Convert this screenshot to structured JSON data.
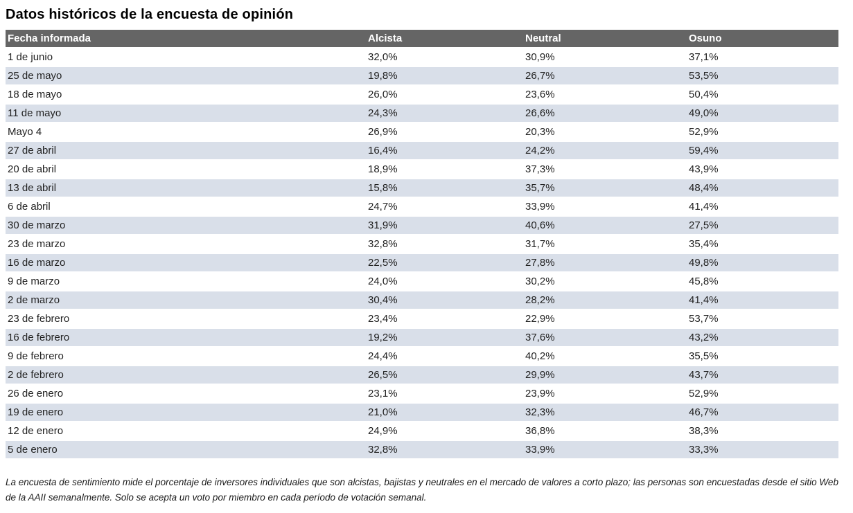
{
  "page": {
    "title": "Datos históricos de la encuesta de opinión"
  },
  "table": {
    "headers": [
      "Fecha informada",
      "Alcista",
      "Neutral",
      "Osuno"
    ],
    "rows": [
      {
        "date": "1 de junio",
        "alcista": "32,0%",
        "neutral": "30,9%",
        "osuno": "37,1%"
      },
      {
        "date": "25 de mayo",
        "alcista": "19,8%",
        "neutral": "26,7%",
        "osuno": "53,5%"
      },
      {
        "date": "18 de mayo",
        "alcista": "26,0%",
        "neutral": "23,6%",
        "osuno": "50,4%"
      },
      {
        "date": "11 de mayo",
        "alcista": "24,3%",
        "neutral": "26,6%",
        "osuno": "49,0%"
      },
      {
        "date": "Mayo 4",
        "alcista": "26,9%",
        "neutral": "20,3%",
        "osuno": "52,9%"
      },
      {
        "date": "27 de abril",
        "alcista": "16,4%",
        "neutral": "24,2%",
        "osuno": "59,4%"
      },
      {
        "date": "20 de abril",
        "alcista": "18,9%",
        "neutral": "37,3%",
        "osuno": "43,9%"
      },
      {
        "date": "13 de abril",
        "alcista": "15,8%",
        "neutral": "35,7%",
        "osuno": "48,4%"
      },
      {
        "date": "6 de abril",
        "alcista": "24,7%",
        "neutral": "33,9%",
        "osuno": "41,4%"
      },
      {
        "date": "30 de marzo",
        "alcista": "31,9%",
        "neutral": "40,6%",
        "osuno": "27,5%"
      },
      {
        "date": "23 de marzo",
        "alcista": "32,8%",
        "neutral": "31,7%",
        "osuno": "35,4%"
      },
      {
        "date": "16 de marzo",
        "alcista": "22,5%",
        "neutral": "27,8%",
        "osuno": "49,8%"
      },
      {
        "date": "9 de marzo",
        "alcista": "24,0%",
        "neutral": "30,2%",
        "osuno": "45,8%"
      },
      {
        "date": "2 de marzo",
        "alcista": "30,4%",
        "neutral": "28,2%",
        "osuno": "41,4%"
      },
      {
        "date": "23 de febrero",
        "alcista": "23,4%",
        "neutral": "22,9%",
        "osuno": "53,7%"
      },
      {
        "date": "16 de febrero",
        "alcista": "19,2%",
        "neutral": "37,6%",
        "osuno": "43,2%"
      },
      {
        "date": "9 de febrero",
        "alcista": "24,4%",
        "neutral": "40,2%",
        "osuno": "35,5%"
      },
      {
        "date": "2 de febrero",
        "alcista": "26,5%",
        "neutral": "29,9%",
        "osuno": "43,7%"
      },
      {
        "date": "26 de enero",
        "alcista": "23,1%",
        "neutral": "23,9%",
        "osuno": "52,9%"
      },
      {
        "date": "19 de enero",
        "alcista": "21,0%",
        "neutral": "32,3%",
        "osuno": "46,7%"
      },
      {
        "date": "12 de enero",
        "alcista": "24,9%",
        "neutral": "36,8%",
        "osuno": "38,3%"
      },
      {
        "date": "5 de enero",
        "alcista": "32,8%",
        "neutral": "33,9%",
        "osuno": "33,3%"
      }
    ]
  },
  "footnote": "La encuesta de sentimiento mide el porcentaje de inversores individuales que son alcistas, bajistas y neutrales en el mercado de valores a corto plazo; las personas son encuestadas desde el sitio Web de la AAII semanalmente. Solo se acepta un voto por miembro en cada período de votación semanal.",
  "colors": {
    "header_bg": "#656565",
    "header_text": "#ffffff",
    "stripe_bg": "#d9dfe9",
    "body_text": "#222222"
  }
}
